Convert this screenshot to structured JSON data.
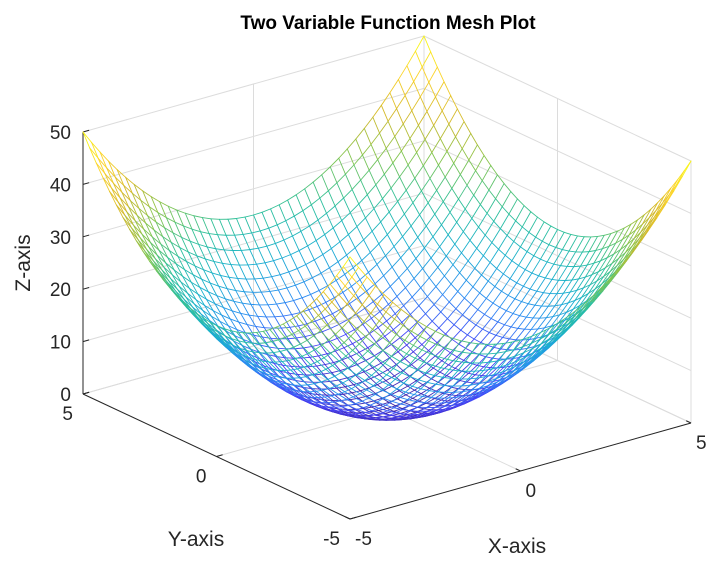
{
  "chart_data": {
    "type": "mesh",
    "title": "Two Variable Function Mesh Plot",
    "xlabel": "X-axis",
    "ylabel": "Y-axis",
    "zlabel": "Z-axis",
    "function": "z = x^2 + y^2",
    "x": [
      -5,
      -4.75,
      -4.5,
      -4.25,
      -4,
      -3.75,
      -3.5,
      -3.25,
      -3,
      -2.75,
      -2.5,
      -2.25,
      -2,
      -1.75,
      -1.5,
      -1.25,
      -1,
      -0.75,
      -0.5,
      -0.25,
      0,
      0.25,
      0.5,
      0.75,
      1,
      1.25,
      1.5,
      1.75,
      2,
      2.25,
      2.5,
      2.75,
      3,
      3.25,
      3.5,
      3.75,
      4,
      4.25,
      4.5,
      4.75,
      5
    ],
    "y": [
      -5,
      -4.75,
      -4.5,
      -4.25,
      -4,
      -3.75,
      -3.5,
      -3.25,
      -3,
      -2.75,
      -2.5,
      -2.25,
      -2,
      -1.75,
      -1.5,
      -1.25,
      -1,
      -0.75,
      -0.5,
      -0.25,
      0,
      0.25,
      0.5,
      0.75,
      1,
      1.25,
      1.5,
      1.75,
      2,
      2.25,
      2.5,
      2.75,
      3,
      3.25,
      3.5,
      3.75,
      4,
      4.25,
      4.5,
      4.75,
      5
    ],
    "xlim": [
      -5,
      5
    ],
    "ylim": [
      -5,
      5
    ],
    "zlim": [
      0,
      50
    ],
    "xticks": [
      "-5",
      "0",
      "5"
    ],
    "yticks": [
      "-5",
      "0",
      "5"
    ],
    "zticks": [
      "0",
      "10",
      "20",
      "30",
      "40",
      "50"
    ],
    "colormap": [
      "#3e26a8",
      "#4743f8",
      "#2b8cf2",
      "#1ab0ce",
      "#2ec09b",
      "#83c550",
      "#d3b92b",
      "#fbd22b",
      "#f9fb15"
    ],
    "grid": true
  }
}
